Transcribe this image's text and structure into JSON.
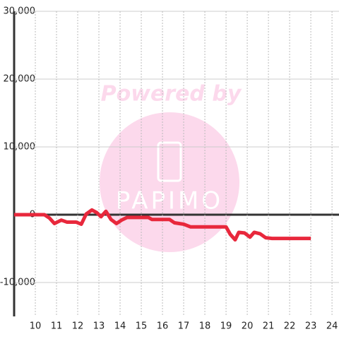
{
  "chart_data": {
    "type": "line",
    "watermark": [
      "Powered by",
      "PAPIMO"
    ],
    "x": [
      9,
      10.43,
      10.67,
      10.9,
      11.23,
      11.5,
      11.93,
      12.17,
      12.4,
      12.67,
      12.9,
      13.1,
      13.33,
      13.57,
      13.83,
      14.07,
      14.33,
      15.33,
      15.5,
      16.33,
      16.57,
      17,
      17.33,
      19,
      19.2,
      19.43,
      19.6,
      19.87,
      20.13,
      20.33,
      20.6,
      20.87,
      21.17,
      23
    ],
    "series": [
      {
        "color": "#e8283c",
        "values": [
          0,
          0,
          -500,
          -1300,
          -800,
          -1100,
          -1100,
          -1400,
          100,
          700,
          300,
          -300,
          500,
          -700,
          -1300,
          -800,
          -400,
          -400,
          -700,
          -700,
          -1200,
          -1400,
          -1800,
          -1800,
          -2900,
          -3700,
          -2600,
          -2700,
          -3300,
          -2600,
          -2800,
          -3400,
          -3500,
          -3500
        ]
      }
    ],
    "xlim": [
      9,
      24.33
    ],
    "xticks": [
      10,
      11,
      12,
      13,
      14,
      15,
      16,
      17,
      18,
      19,
      20,
      21,
      22,
      23,
      24
    ],
    "ylim": [
      -15000,
      30000
    ],
    "yticks": [
      {
        "value": 30000,
        "label": "30,000"
      },
      {
        "value": 20000,
        "label": "20,000"
      },
      {
        "value": 10000,
        "label": "10,000"
      },
      0,
      {
        "value": -10000,
        "label": "-10,000"
      }
    ],
    "grid": true
  }
}
